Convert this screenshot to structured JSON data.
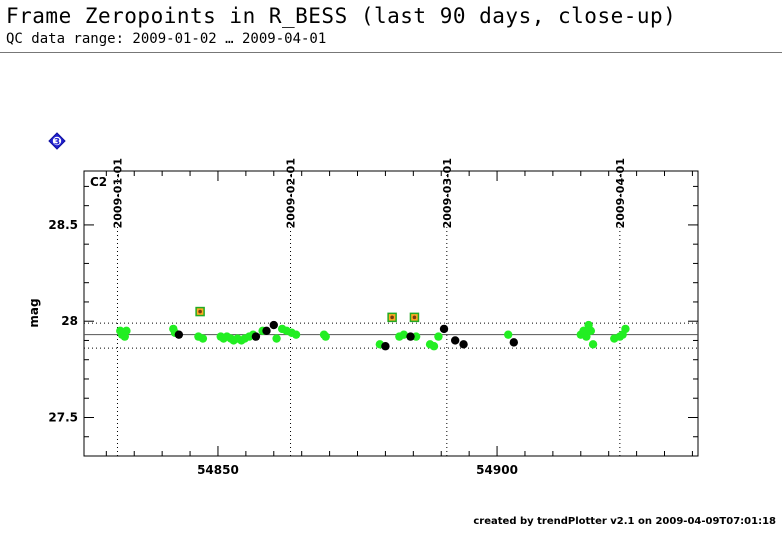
{
  "header": {
    "title": "Frame Zeropoints in R_BESS (last 90 days, close-up)",
    "subtitle": "QC data range: 2009-01-02 … 2009-04-01"
  },
  "footer": {
    "credit": "created by trendPlotter v2.1 on 2009-04-09T07:01:18"
  },
  "badge": {
    "text": "3",
    "color": "#2020d0"
  },
  "chart_data": {
    "type": "scatter",
    "title": "",
    "panel_label": "C2",
    "ylabel": "mag",
    "xlabel": "",
    "xlim": [
      54826,
      54936
    ],
    "ylim": [
      27.3,
      28.78
    ],
    "x_ticks": [
      54850,
      54900
    ],
    "y_ticks": [
      27.5,
      28,
      28.5
    ],
    "y_tick_labels": [
      "27.5",
      "28",
      "28.5"
    ],
    "grid": false,
    "date_markers": [
      {
        "label": "2009-01-01",
        "mjd": 54832
      },
      {
        "label": "2009-02-01",
        "mjd": 54863
      },
      {
        "label": "2009-03-01",
        "mjd": 54891
      },
      {
        "label": "2009-04-01",
        "mjd": 54922
      }
    ],
    "reference_line": 27.93,
    "threshold_lines": [
      27.99,
      27.86
    ],
    "colors": {
      "ok": "#22ee22",
      "other": "#000000",
      "outlier_fill": "#ffaa22",
      "outlier_edge": "#22aa22"
    },
    "series": [
      {
        "name": "",
        "color": "#22ee22",
        "marker": "circle",
        "x": [
          54832.5,
          54832.8,
          54833.3,
          54833.6,
          54842.0,
          54842.3,
          54846.5,
          54847.3,
          54850.5,
          54851.0,
          54851.6,
          54852.3,
          54852.8,
          54853.5,
          54854.2,
          54854.8,
          54855.6,
          54856.3,
          54858.0,
          54860.5,
          54861.5,
          54862.3,
          54863.2,
          54864.0,
          54869.0,
          54869.3,
          54879.0,
          54882.5,
          54883.3,
          54885.5,
          54888.0,
          54888.7,
          54889.5,
          54902.0,
          54915.0,
          54915.5,
          54916.0,
          54916.4,
          54916.8,
          54917.2,
          54921.0,
          54922.0,
          54922.5,
          54923.0
        ],
        "y": [
          27.95,
          27.93,
          27.92,
          27.95,
          27.96,
          27.94,
          27.92,
          27.91,
          27.92,
          27.91,
          27.92,
          27.91,
          27.9,
          27.91,
          27.9,
          27.91,
          27.92,
          27.93,
          27.95,
          27.91,
          27.96,
          27.95,
          27.94,
          27.93,
          27.93,
          27.92,
          27.88,
          27.92,
          27.93,
          27.92,
          27.88,
          27.87,
          27.92,
          27.93,
          27.93,
          27.95,
          27.92,
          27.98,
          27.95,
          27.88,
          27.91,
          27.92,
          27.93,
          27.96
        ]
      },
      {
        "name": "",
        "color": "#000000",
        "marker": "circle",
        "x": [
          54843.0,
          54856.8,
          54858.7,
          54860.0,
          54880.0,
          54884.5,
          54890.5,
          54892.5,
          54894.0,
          54903.0
        ],
        "y": [
          27.93,
          27.92,
          27.95,
          27.98,
          27.87,
          27.92,
          27.96,
          27.9,
          27.88,
          27.89
        ]
      },
      {
        "name": "",
        "color": "#ffaa22",
        "marker": "square",
        "x": [
          54846.8,
          54881.2,
          54885.2
        ],
        "y": [
          28.05,
          28.02,
          28.02
        ]
      }
    ]
  }
}
